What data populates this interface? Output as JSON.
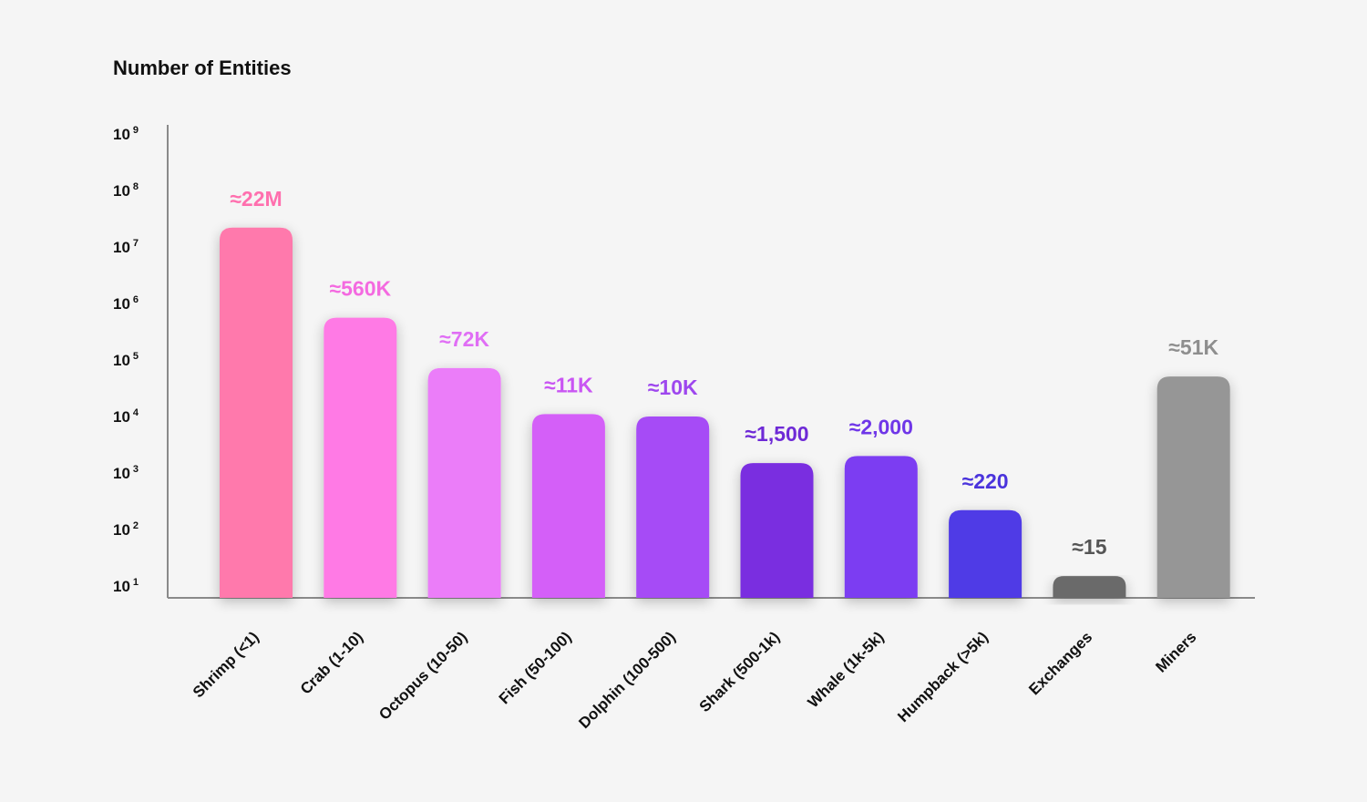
{
  "chart_data": {
    "type": "bar",
    "title": "Number of Entities",
    "xlabel": "",
    "ylabel": "",
    "scale": "log10",
    "ylim": [
      10,
      1000000000
    ],
    "y_ticks": [
      {
        "base": "10",
        "exp": "1",
        "value": 10
      },
      {
        "base": "10",
        "exp": "2",
        "value": 100
      },
      {
        "base": "10",
        "exp": "3",
        "value": 1000
      },
      {
        "base": "10",
        "exp": "4",
        "value": 10000
      },
      {
        "base": "10",
        "exp": "5",
        "value": 100000
      },
      {
        "base": "10",
        "exp": "6",
        "value": 1000000
      },
      {
        "base": "10",
        "exp": "7",
        "value": 10000000
      },
      {
        "base": "10",
        "exp": "8",
        "value": 100000000
      },
      {
        "base": "10",
        "exp": "9",
        "value": 1000000000
      }
    ],
    "categories": [
      "Shrimp (<1)",
      "Crab (1-10)",
      "Octopus (10-50)",
      "Fish (50-100)",
      "Dolphin (100-500)",
      "Shark (500-1k)",
      "Whale (1k-5k)",
      "Humpback (>5k)",
      "Exchanges",
      "Miners"
    ],
    "values": [
      22000000,
      560000,
      72000,
      11000,
      10000,
      1500,
      2000,
      220,
      15,
      51000
    ],
    "value_labels": [
      "≈22M",
      "≈560K",
      "≈72K",
      "≈11K",
      "≈10K",
      "≈1,500",
      "≈2,000",
      "≈220",
      "≈15",
      "≈51K"
    ],
    "colors": [
      "#ff79ac",
      "#ff7ae5",
      "#eb7df9",
      "#d45ff8",
      "#a64cf6",
      "#7a2de0",
      "#7b3df2",
      "#4f3ae6",
      "#6a6a6a",
      "#969696"
    ],
    "label_colors": [
      "#ff6fae",
      "#f46ae0",
      "#e06ef5",
      "#c955f3",
      "#9e47ee",
      "#6e2ad6",
      "#6f36e8",
      "#4a33dc",
      "#555555",
      "#8e8e8e"
    ],
    "axis_color": "#8a8a8a"
  }
}
